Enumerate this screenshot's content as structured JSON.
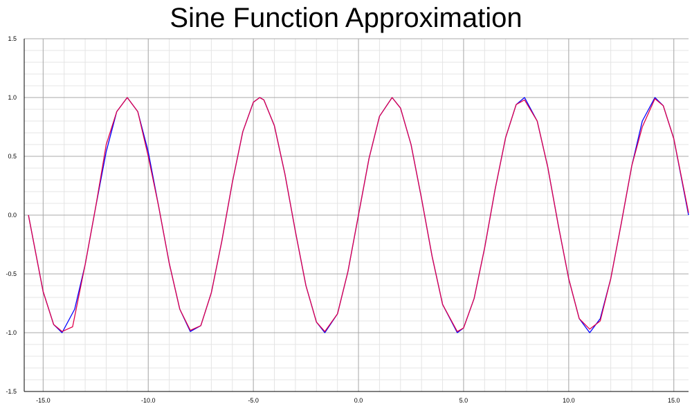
{
  "chart_data": {
    "type": "line",
    "title": "Sine Function Approximation",
    "xlabel": "",
    "ylabel": "",
    "xlim": [
      -15.9,
      15.7
    ],
    "ylim": [
      -1.5,
      1.5
    ],
    "grid": true,
    "x_major_ticks": [
      -15.0,
      -10.0,
      -5.0,
      0.0,
      5.0,
      10.0,
      15.0
    ],
    "x_tick_labels": [
      "-15.0",
      "-10.0",
      "-5.0",
      "0.0",
      "5.0",
      "10.0",
      "15.0"
    ],
    "y_major_ticks": [
      1.5,
      1.0,
      0.5,
      0.0,
      -0.5,
      -1.0,
      -1.5
    ],
    "y_tick_labels": [
      "1.5",
      "1.0",
      "0.5",
      "0.0",
      "-0.5",
      "-1.0",
      "-1.5"
    ],
    "series": [
      {
        "color": "#0000ff",
        "x": [
          -15.7,
          -15.0,
          -14.5,
          -14.1,
          -13.5,
          -13.0,
          -12.5,
          -12.0,
          -11.5,
          -11.0,
          -10.5,
          -10.0,
          -9.5,
          -9.0,
          -8.5,
          -8.0,
          -7.5,
          -7.0,
          -6.5,
          -6.0,
          -5.5,
          -5.0,
          -4.7,
          -4.5,
          -4.0,
          -3.5,
          -3.0,
          -2.5,
          -2.0,
          -1.6,
          -1.0,
          -0.5,
          0.0,
          0.5,
          1.0,
          1.6,
          2.0,
          2.5,
          3.0,
          3.5,
          4.0,
          4.7,
          5.0,
          5.5,
          6.0,
          6.5,
          7.0,
          7.5,
          7.9,
          8.5,
          9.0,
          9.5,
          10.0,
          10.5,
          11.0,
          11.5,
          12.0,
          12.5,
          13.0,
          13.5,
          14.1,
          14.5,
          15.0,
          15.7
        ],
        "y": [
          0.0,
          -0.65,
          -0.93,
          -1.0,
          -0.8,
          -0.42,
          0.07,
          0.54,
          0.88,
          1.0,
          0.88,
          0.54,
          0.07,
          -0.41,
          -0.8,
          -0.99,
          -0.94,
          -0.66,
          -0.22,
          0.28,
          0.71,
          0.96,
          1.0,
          0.98,
          0.76,
          0.35,
          -0.14,
          -0.6,
          -0.91,
          -1.0,
          -0.84,
          -0.48,
          0.0,
          0.48,
          0.84,
          1.0,
          0.91,
          0.6,
          0.14,
          -0.35,
          -0.76,
          -1.0,
          -0.96,
          -0.71,
          -0.28,
          0.22,
          0.66,
          0.94,
          1.0,
          0.8,
          0.41,
          -0.08,
          -0.54,
          -0.88,
          -1.0,
          -0.88,
          -0.54,
          -0.07,
          0.42,
          0.8,
          1.0,
          0.93,
          0.65,
          0.0
        ]
      },
      {
        "color": "#e0004a",
        "x": [
          -15.7,
          -15.0,
          -14.5,
          -14.1,
          -13.6,
          -13.0,
          -12.5,
          -12.0,
          -11.5,
          -11.0,
          -10.5,
          -10.0,
          -9.5,
          -9.0,
          -8.5,
          -8.0,
          -7.5,
          -7.0,
          -6.5,
          -6.0,
          -5.5,
          -5.0,
          -4.7,
          -4.5,
          -4.0,
          -3.5,
          -3.0,
          -2.5,
          -2.0,
          -1.6,
          -1.0,
          -0.5,
          0.0,
          0.5,
          1.0,
          1.6,
          2.0,
          2.5,
          3.0,
          3.5,
          4.0,
          4.7,
          5.0,
          5.5,
          6.0,
          6.5,
          7.0,
          7.5,
          7.9,
          8.5,
          9.0,
          9.5,
          10.0,
          10.5,
          11.0,
          11.5,
          12.0,
          12.5,
          13.0,
          13.5,
          14.1,
          14.5,
          15.0,
          15.7
        ],
        "y": [
          0.0,
          -0.65,
          -0.93,
          -0.99,
          -0.95,
          -0.42,
          0.07,
          0.6,
          0.88,
          1.0,
          0.88,
          0.5,
          0.07,
          -0.41,
          -0.8,
          -0.98,
          -0.94,
          -0.66,
          -0.22,
          0.28,
          0.71,
          0.96,
          1.0,
          0.98,
          0.76,
          0.35,
          -0.14,
          -0.6,
          -0.91,
          -0.99,
          -0.84,
          -0.48,
          0.0,
          0.48,
          0.84,
          1.0,
          0.91,
          0.6,
          0.14,
          -0.35,
          -0.76,
          -0.99,
          -0.96,
          -0.71,
          -0.28,
          0.22,
          0.66,
          0.94,
          0.98,
          0.8,
          0.41,
          -0.08,
          -0.54,
          -0.88,
          -0.97,
          -0.9,
          -0.54,
          -0.07,
          0.42,
          0.75,
          0.99,
          0.93,
          0.65,
          0.02
        ]
      }
    ]
  }
}
